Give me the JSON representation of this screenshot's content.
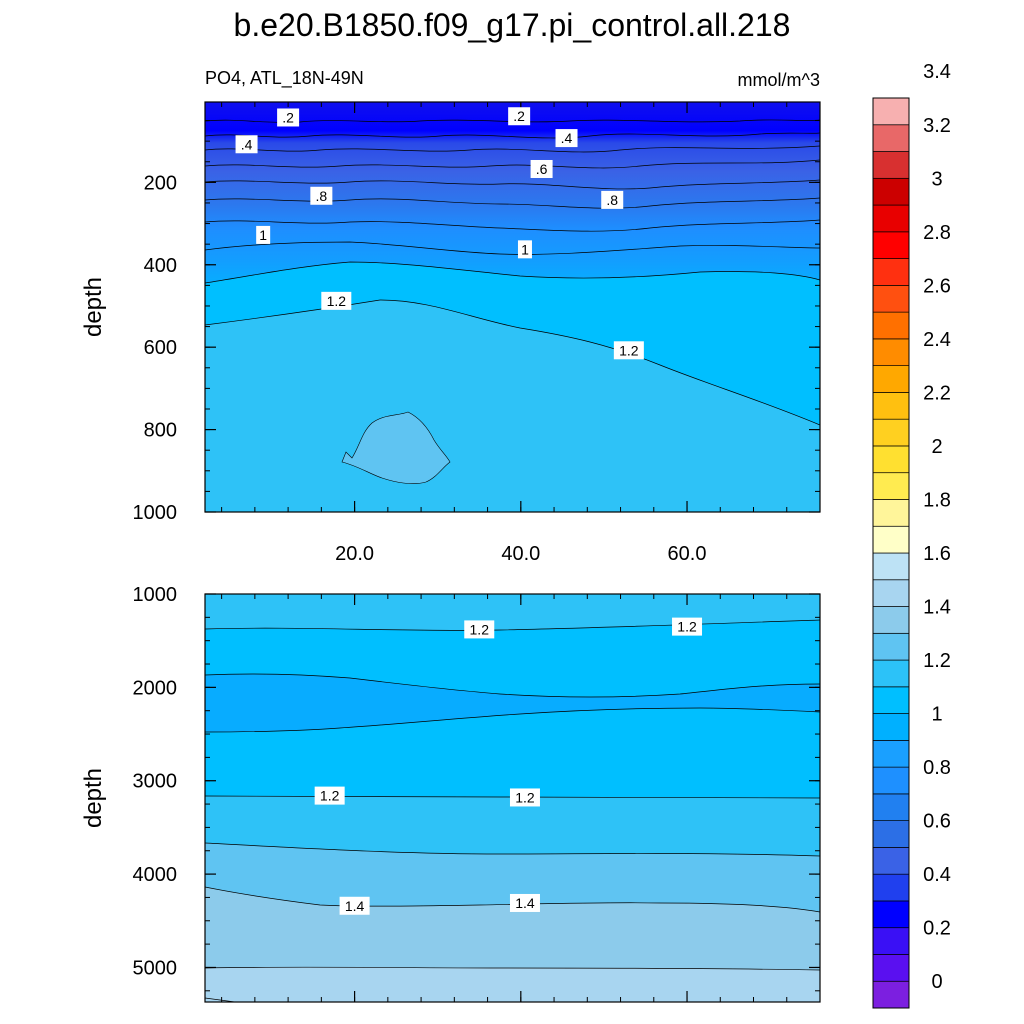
{
  "chart_data": [
    {
      "type": "contour",
      "title": "b.e20.B1850.f09_g17.pi_control.all.218",
      "subtitle_left": "PO4, ATL_18N-49N",
      "subtitle_right": "mmol/m^3",
      "ylabel": "depth",
      "xlabel": "",
      "xlim": [
        2,
        76
      ],
      "ylim": [
        1000,
        5
      ],
      "x_ticks": [
        20,
        40,
        60
      ],
      "x_tick_labels": [
        "20.0",
        "40.0",
        "60.0"
      ],
      "y_ticks": [
        200,
        400,
        600,
        800,
        1000
      ],
      "y_tick_labels": [
        "200",
        "400",
        "600",
        "800",
        "1000"
      ],
      "contour_labels": [
        {
          "text": ".2",
          "x": 12,
          "y": 45
        },
        {
          "text": ".2",
          "x": 39.8,
          "y": 42
        },
        {
          "text": ".4",
          "x": 7,
          "y": 110
        },
        {
          "text": ".4",
          "x": 45.5,
          "y": 95
        },
        {
          "text": ".6",
          "x": 42.5,
          "y": 170
        },
        {
          "text": ".8",
          "x": 16,
          "y": 235
        },
        {
          "text": ".8",
          "x": 51,
          "y": 245
        },
        {
          "text": "1",
          "x": 9,
          "y": 330
        },
        {
          "text": "1",
          "x": 40.5,
          "y": 365
        },
        {
          "text": "1.2",
          "x": 17.8,
          "y": 490
        },
        {
          "text": "1.2",
          "x": 53,
          "y": 610
        }
      ]
    },
    {
      "type": "contour",
      "title": "",
      "ylabel": "depth",
      "xlabel": "",
      "xlim": [
        2,
        76
      ],
      "ylim": [
        5370,
        1000
      ],
      "x_ticks": [
        20,
        40,
        60
      ],
      "y_ticks": [
        1000,
        2000,
        3000,
        4000,
        5000
      ],
      "y_tick_labels": [
        "1000",
        "2000",
        "3000",
        "4000",
        "5000"
      ],
      "contour_labels": [
        {
          "text": "1.2",
          "x": 35,
          "y": 1390
        },
        {
          "text": "1.2",
          "x": 60,
          "y": 1360
        },
        {
          "text": "1.2",
          "x": 17,
          "y": 3170
        },
        {
          "text": "1.2",
          "x": 40.5,
          "y": 3190
        },
        {
          "text": "1.4",
          "x": 20,
          "y": 4350
        },
        {
          "text": "1.4",
          "x": 40.5,
          "y": 4320
        }
      ]
    },
    {
      "type": "colorbar",
      "levels": [
        0,
        0.2,
        0.4,
        0.6,
        0.8,
        1,
        1.2,
        1.4,
        1.6,
        1.8,
        2,
        2.2,
        2.4,
        2.6,
        2.8,
        3,
        3.2,
        3.4
      ],
      "level_labels": [
        "0",
        "0.2",
        "0.4",
        "0.6",
        "0.8",
        "1",
        "1.2",
        "1.4",
        "1.6",
        "1.8",
        "2",
        "2.2",
        "2.4",
        "2.6",
        "2.8",
        "3",
        "3.2",
        "3.4"
      ],
      "colors": [
        "#7c1fe0",
        "#5a10f0",
        "#3a10f5",
        "#0000ff",
        "#2040ee",
        "#3a62e6",
        "#2c6fe6",
        "#2180f0",
        "#1e90ff",
        "#1aa0ff",
        "#00b0ff",
        "#00bfff",
        "#2cc2f8",
        "#5fc4f2",
        "#8ccbeb",
        "#a8d5f0",
        "#bde2f5",
        "#ffffc8",
        "#fff59a",
        "#ffeb50",
        "#ffe030",
        "#ffd020",
        "#ffc010",
        "#ffa800",
        "#ff8c00",
        "#ff7000",
        "#ff5010",
        "#ff3010",
        "#ff0000",
        "#e80000",
        "#cc0000",
        "#d83030",
        "#e86868",
        "#f7b0b0"
      ]
    }
  ]
}
